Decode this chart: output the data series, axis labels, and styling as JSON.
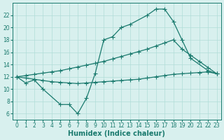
{
  "xlabel": "Humidex (Indice chaleur)",
  "color": "#1a7a6e",
  "bg_color": "#d8f0ee",
  "grid_color": "#b0ddd8",
  "ylim": [
    5,
    24
  ],
  "xlim": [
    -0.5,
    23.5
  ],
  "yticks": [
    6,
    8,
    10,
    12,
    14,
    16,
    18,
    20,
    22
  ],
  "xticks": [
    0,
    1,
    2,
    3,
    4,
    5,
    6,
    7,
    8,
    9,
    10,
    11,
    12,
    13,
    14,
    15,
    16,
    17,
    18,
    19,
    20,
    21,
    22,
    23
  ],
  "fontsize_label": 7,
  "fontsize_tick": 5.5,
  "markersize": 2.2,
  "linewidth": 0.9,
  "top_x": [
    0,
    1,
    2,
    3,
    5,
    6,
    7,
    8,
    9,
    10,
    11,
    12,
    13,
    15,
    16,
    17,
    18,
    19,
    20,
    22,
    23
  ],
  "top_y": [
    12,
    11,
    11.5,
    10,
    7.5,
    7.5,
    6,
    8.5,
    12.5,
    18,
    18.5,
    20,
    20.5,
    22,
    23,
    23,
    21,
    18,
    15,
    13,
    12.5
  ],
  "mid_x": [
    0,
    1,
    2,
    3,
    4,
    5,
    6,
    7,
    8,
    9,
    10,
    11,
    12,
    13,
    14,
    15,
    16,
    17,
    18,
    19,
    20,
    21,
    22,
    23
  ],
  "mid_y": [
    12,
    12.2,
    12.4,
    12.6,
    12.8,
    13.0,
    13.3,
    13.6,
    13.9,
    14.2,
    14.5,
    14.9,
    15.3,
    15.7,
    16.1,
    16.5,
    17.0,
    17.5,
    18.0,
    16.5,
    15.5,
    14.5,
    13.5,
    12.5
  ],
  "bot_x": [
    0,
    1,
    2,
    3,
    4,
    5,
    6,
    7,
    8,
    9,
    10,
    11,
    12,
    13,
    14,
    15,
    16,
    17,
    18,
    19,
    20,
    21,
    22,
    23
  ],
  "bot_y": [
    12,
    11.8,
    11.6,
    11.4,
    11.2,
    11.1,
    11.0,
    10.9,
    11.0,
    11.1,
    11.2,
    11.3,
    11.4,
    11.5,
    11.6,
    11.8,
    12.0,
    12.2,
    12.4,
    12.5,
    12.6,
    12.7,
    12.8,
    12.5
  ]
}
